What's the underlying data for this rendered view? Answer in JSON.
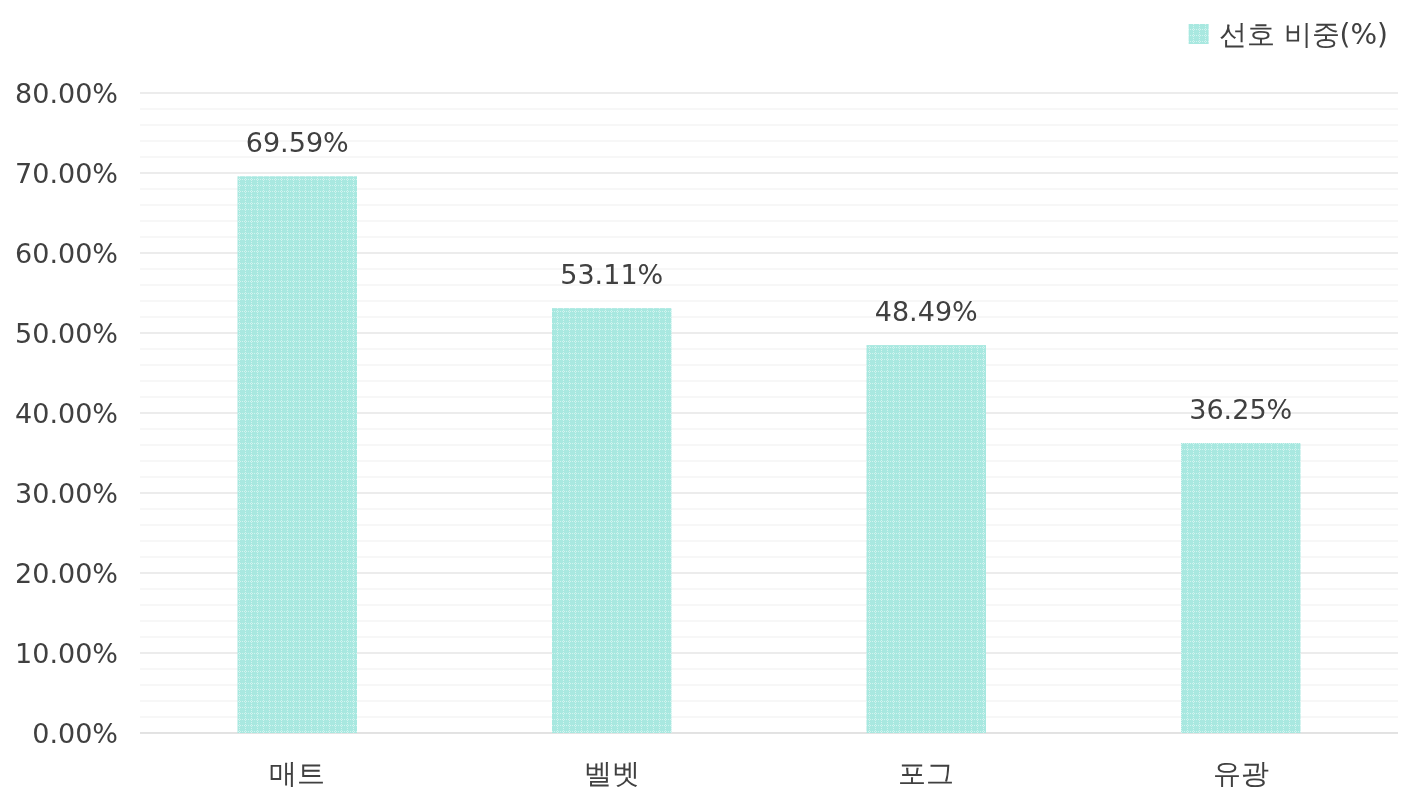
{
  "chart_data": {
    "type": "bar",
    "categories": [
      "매트",
      "벨벳",
      "포그",
      "유광"
    ],
    "series": [
      {
        "name": "선호 비중(%)",
        "color": "#a8e8e0",
        "values": [
          69.59,
          53.11,
          48.49,
          36.25
        ],
        "value_labels": [
          "69.59%",
          "53.11%",
          "48.49%",
          "36.25%"
        ]
      }
    ],
    "ylim": [
      0,
      80
    ],
    "yticks": [
      {
        "value": 0,
        "label": "0.00%"
      },
      {
        "value": 10,
        "label": "10.00%"
      },
      {
        "value": 20,
        "label": "20.00%"
      },
      {
        "value": 30,
        "label": "30.00%"
      },
      {
        "value": 40,
        "label": "40.00%"
      },
      {
        "value": 50,
        "label": "50.00%"
      },
      {
        "value": 60,
        "label": "60.00%"
      },
      {
        "value": 70,
        "label": "70.00%"
      },
      {
        "value": 80,
        "label": "80.00%"
      }
    ],
    "grid": "y",
    "legend": "top right"
  }
}
